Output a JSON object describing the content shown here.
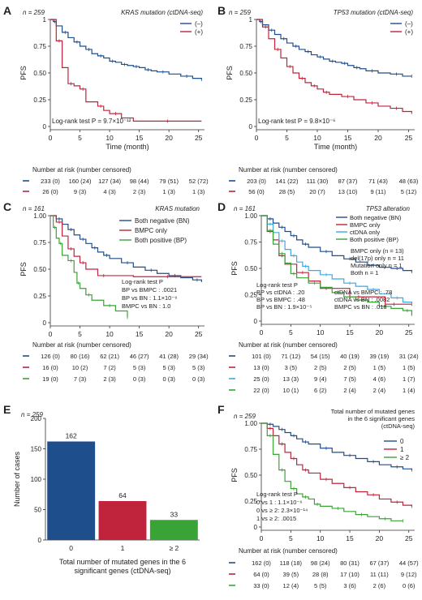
{
  "chart_data": [
    {
      "panel": "A",
      "type": "line",
      "n_label": "n = 259",
      "title": "KRAS mutation (ctDNA-seq)",
      "ylabel": "PFS",
      "xlabel": "Time (month)",
      "xlim": [
        0,
        26
      ],
      "ylim": [
        0,
        1
      ],
      "xticks": [
        0,
        5,
        10,
        15,
        20,
        25
      ],
      "yticks": [
        "0",
        "0.25",
        "0.50",
        "0.75",
        "1"
      ],
      "stat_text": [
        "Log-rank test P = 9.7×10⁻¹²"
      ],
      "series": [
        {
          "name": "(–)",
          "color": "#1f4e8c",
          "x": [
            0,
            0.5,
            1,
            2,
            3,
            4,
            5,
            6,
            7,
            8,
            9,
            10,
            11,
            12,
            13,
            14,
            15,
            16,
            17,
            18,
            20,
            22,
            24,
            25.5
          ],
          "y": [
            1,
            0.98,
            0.94,
            0.88,
            0.83,
            0.79,
            0.75,
            0.72,
            0.68,
            0.66,
            0.64,
            0.61,
            0.6,
            0.58,
            0.57,
            0.56,
            0.55,
            0.53,
            0.52,
            0.51,
            0.49,
            0.47,
            0.45,
            0.44
          ]
        },
        {
          "name": "(+)",
          "color": "#c0243c",
          "x": [
            0,
            1,
            2,
            3,
            4,
            5,
            6,
            8,
            9,
            10,
            12,
            14,
            25.5
          ],
          "y": [
            1,
            0.8,
            0.55,
            0.4,
            0.38,
            0.35,
            0.23,
            0.19,
            0.15,
            0.12,
            0.08,
            0.05,
            0.05
          ]
        }
      ],
      "risk_header": "Number at risk (number censored)",
      "risk_x": [
        0,
        5,
        10,
        15,
        20,
        25
      ],
      "risk_rows": [
        {
          "color": "#1f4e8c",
          "cells": [
            "233 (0)",
            "160 (24)",
            "127 (34)",
            "98 (44)",
            "79 (51)",
            "52 (72)"
          ]
        },
        {
          "color": "#c0243c",
          "cells": [
            "26 (0)",
            "9 (3)",
            "4 (3)",
            "2 (3)",
            "1 (3)",
            "1 (3)"
          ]
        }
      ]
    },
    {
      "panel": "B",
      "type": "line",
      "n_label": "n = 259",
      "title": "TP53 mutation (ctDNA-seq)",
      "ylabel": "PFS",
      "xlabel": "Time (month)",
      "xlim": [
        0,
        26
      ],
      "ylim": [
        0,
        1
      ],
      "xticks": [
        0,
        5,
        10,
        15,
        20,
        25
      ],
      "yticks": [
        "0",
        "0.25",
        "0.50",
        "0.75",
        "1"
      ],
      "stat_text": [
        "Log-rank test P = 9.8×10⁻⁶"
      ],
      "series": [
        {
          "name": "(–)",
          "color": "#1f4e8c",
          "x": [
            0,
            0.5,
            1,
            2,
            3,
            4,
            5,
            6,
            7,
            8,
            9,
            10,
            11,
            12,
            13,
            14,
            15,
            16,
            17,
            18,
            20,
            22,
            24,
            25.5
          ],
          "y": [
            1,
            0.98,
            0.95,
            0.9,
            0.86,
            0.82,
            0.78,
            0.75,
            0.72,
            0.7,
            0.67,
            0.65,
            0.63,
            0.61,
            0.6,
            0.59,
            0.57,
            0.55,
            0.54,
            0.52,
            0.5,
            0.49,
            0.47,
            0.47
          ]
        },
        {
          "name": "(+)",
          "color": "#c0243c",
          "x": [
            0,
            1,
            2,
            3,
            4,
            5,
            6,
            7,
            8,
            9,
            10,
            11,
            12,
            14,
            16,
            18,
            20,
            22,
            24,
            25.5
          ],
          "y": [
            1,
            0.93,
            0.82,
            0.72,
            0.64,
            0.56,
            0.5,
            0.45,
            0.41,
            0.38,
            0.35,
            0.32,
            0.3,
            0.28,
            0.25,
            0.22,
            0.19,
            0.17,
            0.14,
            0.13
          ]
        }
      ],
      "risk_header": "Number at risk (number censored)",
      "risk_x": [
        0,
        5,
        10,
        15,
        20,
        25
      ],
      "risk_rows": [
        {
          "color": "#1f4e8c",
          "cells": [
            "203 (0)",
            "141 (22)",
            "111 (30)",
            "87 (37)",
            "71 (43)",
            "48 (63)"
          ]
        },
        {
          "color": "#c0243c",
          "cells": [
            "56 (0)",
            "28 (5)",
            "20 (7)",
            "13 (10)",
            "9 (11)",
            "5 (12)"
          ]
        }
      ]
    },
    {
      "panel": "C",
      "type": "line",
      "n_label": "n = 161",
      "title": "KRAS mutation",
      "ylabel": "PFS",
      "xlabel": "",
      "xlim": [
        0,
        26
      ],
      "ylim": [
        0,
        1
      ],
      "xticks": [
        0,
        5,
        10,
        15,
        20,
        25
      ],
      "yticks": [
        "0",
        "0.25",
        "0.50",
        "0.75",
        "1.00"
      ],
      "stat_text": [
        "Log-rank test P",
        "BP vs BMPC : .0021",
        "BP vs BN : 1.1×10⁻⁶",
        "BMPC vs BN : 1.0"
      ],
      "series": [
        {
          "name": "Both negative (BN)",
          "color": "#1f4e8c",
          "x": [
            0,
            1,
            2,
            3,
            4,
            5,
            6,
            7,
            8,
            9,
            10,
            12,
            14,
            16,
            18,
            20,
            22,
            24,
            25.5
          ],
          "y": [
            1,
            0.97,
            0.92,
            0.87,
            0.82,
            0.78,
            0.74,
            0.7,
            0.66,
            0.63,
            0.6,
            0.56,
            0.52,
            0.49,
            0.46,
            0.44,
            0.42,
            0.4,
            0.38
          ]
        },
        {
          "name": "BMPC only",
          "color": "#c0243c",
          "x": [
            0,
            1,
            2,
            3,
            4,
            5,
            6,
            8,
            10,
            14,
            25.5
          ],
          "y": [
            1,
            0.94,
            0.81,
            0.69,
            0.62,
            0.56,
            0.5,
            0.44,
            0.44,
            0.43,
            0.43
          ]
        },
        {
          "name": "Both positive (BP)",
          "color": "#3aa335",
          "x": [
            0,
            0.5,
            1,
            1.5,
            2,
            3,
            4,
            4.5,
            5,
            6,
            7,
            9,
            11,
            13
          ],
          "y": [
            1,
            0.89,
            0.79,
            0.74,
            0.63,
            0.58,
            0.47,
            0.37,
            0.32,
            0.26,
            0.21,
            0.16,
            0.11,
            0.05
          ]
        }
      ],
      "risk_header": "Number at risk (number censored)",
      "risk_x": [
        0,
        5,
        10,
        15,
        20,
        25
      ],
      "risk_rows": [
        {
          "color": "#1f4e8c",
          "cells": [
            "126 (0)",
            "80 (16)",
            "62 (21)",
            "46 (27)",
            "41 (28)",
            "29 (34)"
          ]
        },
        {
          "color": "#c0243c",
          "cells": [
            "16 (0)",
            "10 (2)",
            "7 (2)",
            "5 (3)",
            "5 (3)",
            "5 (3)"
          ]
        },
        {
          "color": "#3aa335",
          "cells": [
            "19 (0)",
            "7 (3)",
            "2 (3)",
            "0 (3)",
            "0 (3)",
            "0 (3)"
          ]
        }
      ]
    },
    {
      "panel": "D",
      "type": "line",
      "n_label": "n = 161",
      "title": "TP53 alteration",
      "ylabel": "PFS",
      "xlabel": "",
      "xlim": [
        0,
        26
      ],
      "ylim": [
        0,
        1
      ],
      "xticks": [
        0,
        5,
        10,
        15,
        20,
        25
      ],
      "yticks": [
        "0",
        "0.25",
        "0.50",
        "0.75",
        "1.00"
      ],
      "annotation": [
        "BMPC only (n = 13)",
        "del(17p) only  n = 11",
        "Mutation only  n = 1",
        "Both  n = 1"
      ],
      "stat_text": [
        "Log-rank test P",
        "BP vs ctDNA : .20",
        "BP vs BMPC : .48",
        "BP vs BN : 1.9×10⁻⁵",
        "ctDNA vs BMPC : .78",
        "ctDNA vs BN : .0082",
        "BMPC vs BN : .018"
      ],
      "series": [
        {
          "name": "Both negative (BN)",
          "color": "#1f4e8c",
          "x": [
            0,
            1,
            2,
            3,
            4,
            5,
            6,
            7,
            8,
            10,
            12,
            14,
            16,
            18,
            20,
            22,
            24,
            25.5
          ],
          "y": [
            1,
            0.97,
            0.93,
            0.89,
            0.85,
            0.81,
            0.77,
            0.73,
            0.7,
            0.66,
            0.62,
            0.59,
            0.56,
            0.53,
            0.51,
            0.5,
            0.48,
            0.47
          ]
        },
        {
          "name": "BMPC only",
          "color": "#c0243c",
          "x": [
            0,
            1,
            2,
            3,
            4,
            6,
            8,
            10,
            12,
            15,
            18,
            21,
            24,
            25.5
          ],
          "y": [
            1,
            0.85,
            0.77,
            0.62,
            0.54,
            0.46,
            0.38,
            0.31,
            0.31,
            0.23,
            0.23,
            0.16,
            0.16,
            0.16
          ]
        },
        {
          "name": "ctDNA only",
          "color": "#3fa9e0",
          "x": [
            0,
            1,
            2,
            3,
            4,
            5,
            6,
            7,
            8,
            10,
            12,
            14,
            16,
            18,
            20,
            22,
            24,
            25.5
          ],
          "y": [
            1,
            0.92,
            0.84,
            0.76,
            0.68,
            0.62,
            0.56,
            0.52,
            0.48,
            0.44,
            0.4,
            0.36,
            0.33,
            0.3,
            0.26,
            0.22,
            0.18,
            0.17
          ]
        },
        {
          "name": "Both positive (BP)",
          "color": "#3aa335",
          "x": [
            0,
            1,
            2,
            3,
            4,
            5,
            6,
            8,
            10,
            12,
            14,
            16,
            18,
            20,
            22,
            24,
            25.5
          ],
          "y": [
            1,
            0.86,
            0.73,
            0.64,
            0.55,
            0.45,
            0.41,
            0.36,
            0.32,
            0.27,
            0.23,
            0.2,
            0.18,
            0.14,
            0.12,
            0.1,
            0.05
          ]
        }
      ],
      "risk_header": "Number at risk (number censored)",
      "risk_x": [
        0,
        5,
        10,
        15,
        20,
        25
      ],
      "risk_rows": [
        {
          "color": "#1f4e8c",
          "cells": [
            "101 (0)",
            "71 (12)",
            "54 (15)",
            "40 (19)",
            "39 (19)",
            "31 (24)"
          ]
        },
        {
          "color": "#c0243c",
          "cells": [
            "13 (0)",
            "3 (5)",
            "2 (5)",
            "2 (5)",
            "1 (5)",
            "1 (5)"
          ]
        },
        {
          "color": "#3fa9e0",
          "cells": [
            "25 (0)",
            "13 (3)",
            "9 (4)",
            "7 (5)",
            "4 (6)",
            "1 (7)"
          ]
        },
        {
          "color": "#3aa335",
          "cells": [
            "22 (0)",
            "10 (1)",
            "6 (2)",
            "2 (4)",
            "2 (4)",
            "1 (4)"
          ]
        }
      ]
    },
    {
      "panel": "E",
      "type": "bar",
      "n_label": "n = 259",
      "categories": [
        "0",
        "1",
        "≥ 2"
      ],
      "values": [
        162,
        64,
        33
      ],
      "colors": [
        "#1f4e8c",
        "#c0243c",
        "#3aa335"
      ],
      "ylabel": "Number of cases",
      "xlabel": [
        "Total number of mutated genes in the 6",
        "significant genes (ctDNA-seq)"
      ],
      "ylim": [
        0,
        200
      ],
      "yticks": [
        "0",
        "50",
        "100",
        "150",
        "200"
      ]
    },
    {
      "panel": "F",
      "type": "line",
      "n_label": "n = 259",
      "legend_title": [
        "Total number of mutated genes",
        "in the 6 significant genes",
        "(ctDNA-seq)"
      ],
      "ylabel": "PFS",
      "xlabel": "",
      "xlim": [
        0,
        26
      ],
      "ylim": [
        0,
        1
      ],
      "xticks": [
        0,
        5,
        10,
        15,
        20,
        25
      ],
      "yticks": [
        "0",
        "0.25",
        "0.50",
        "0.75",
        "1.00"
      ],
      "stat_text": [
        "Log-rank test P",
        "0 vs 1  : 1.1×10⁻⁶",
        "0 vs ≥ 2: 2.3×10⁻¹⁴",
        "1 vs ≥ 2: .0015"
      ],
      "series": [
        {
          "name": "0",
          "color": "#1f4e8c",
          "x": [
            0,
            1,
            2,
            3,
            4,
            5,
            6,
            7,
            8,
            10,
            12,
            14,
            16,
            18,
            20,
            22,
            24,
            25.5
          ],
          "y": [
            1,
            0.99,
            0.97,
            0.94,
            0.91,
            0.88,
            0.85,
            0.82,
            0.8,
            0.76,
            0.72,
            0.69,
            0.66,
            0.63,
            0.6,
            0.58,
            0.56,
            0.55
          ]
        },
        {
          "name": "1",
          "color": "#c0243c",
          "x": [
            0,
            1,
            2,
            3,
            4,
            5,
            6,
            7,
            8,
            10,
            12,
            14,
            16,
            18,
            20,
            22,
            24,
            25.5
          ],
          "y": [
            1,
            0.95,
            0.88,
            0.8,
            0.72,
            0.66,
            0.6,
            0.55,
            0.52,
            0.46,
            0.42,
            0.38,
            0.34,
            0.31,
            0.27,
            0.24,
            0.21,
            0.2
          ]
        },
        {
          "name": "≥ 2",
          "color": "#3aa335",
          "x": [
            0,
            1,
            2,
            3,
            4,
            5,
            6,
            7,
            8,
            9,
            10,
            12,
            14,
            16,
            18,
            20,
            22,
            24
          ],
          "y": [
            1,
            0.88,
            0.7,
            0.55,
            0.44,
            0.37,
            0.32,
            0.29,
            0.27,
            0.22,
            0.2,
            0.18,
            0.15,
            0.12,
            0.1,
            0.08,
            0.06,
            0.06
          ]
        }
      ],
      "risk_header": "Number at risk (number censored)",
      "risk_x": [
        0,
        5,
        10,
        15,
        20,
        25
      ],
      "risk_rows": [
        {
          "color": "#1f4e8c",
          "cells": [
            "162 (0)",
            "118 (18)",
            "98 (24)",
            "80 (31)",
            "67 (37)",
            "44 (57)"
          ]
        },
        {
          "color": "#c0243c",
          "cells": [
            "64 (0)",
            "39 (5)",
            "28 (8)",
            "17 (10)",
            "11 (11)",
            "9 (12)"
          ]
        },
        {
          "color": "#3aa335",
          "cells": [
            "33 (0)",
            "12 (4)",
            "5 (5)",
            "3 (6)",
            "2 (6)",
            "0 (6)"
          ]
        }
      ]
    }
  ]
}
